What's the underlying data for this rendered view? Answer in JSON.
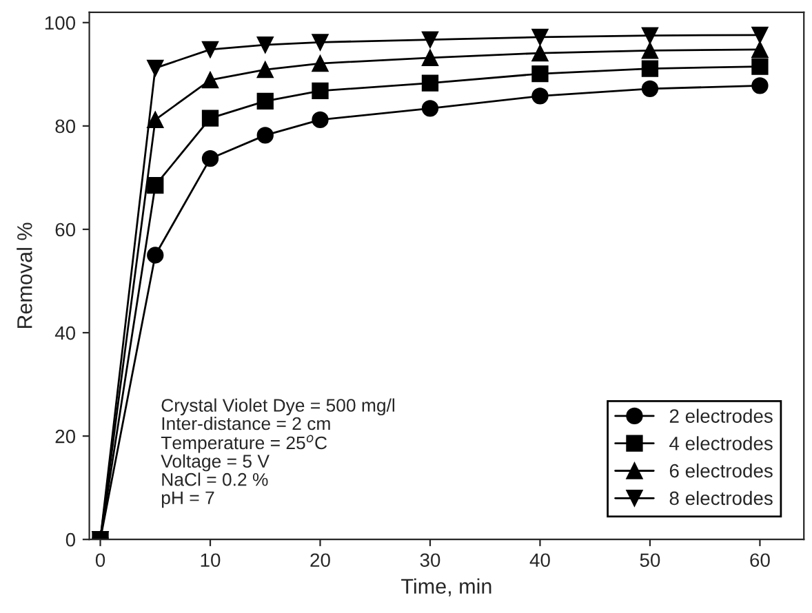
{
  "chart_data": {
    "type": "line",
    "xlabel": "Time, min",
    "ylabel": "Removal %",
    "x": [
      0,
      5,
      10,
      15,
      20,
      30,
      40,
      50,
      60
    ],
    "series": [
      {
        "name": "2 electrodes",
        "color": "#000000",
        "marker": "circle",
        "values": [
          0,
          55,
          73.7,
          78.2,
          81.2,
          83.4,
          85.8,
          87.2,
          87.8
        ]
      },
      {
        "name": "4 electrodes",
        "color": "#000000",
        "marker": "square",
        "values": [
          0,
          68.5,
          81.5,
          84.8,
          86.8,
          88.3,
          90.1,
          91.1,
          91.5
        ]
      },
      {
        "name": "6 electrodes",
        "color": "#000000",
        "marker": "triangle",
        "values": [
          0,
          81.2,
          88.9,
          90.9,
          92.1,
          93.2,
          94.1,
          94.6,
          94.8
        ]
      },
      {
        "name": "8 electrodes",
        "color": "#000000",
        "marker": "triangle_down",
        "values": [
          0,
          91.2,
          94.8,
          95.7,
          96.2,
          96.7,
          97.2,
          97.5,
          97.6
        ]
      }
    ],
    "xlim": [
      -1,
      64
    ],
    "xticks": [
      0,
      10,
      20,
      30,
      40,
      50,
      60
    ],
    "ylim": [
      0,
      102
    ],
    "yticks": [
      0,
      20,
      40,
      60,
      80,
      100
    ],
    "annotations": [
      "Crystal Violet Dye = 500 mg/l\nInter-distance = 2 cm\nTemperature = 25$^{o}$C\nVoltage = 5 V\nNaCl = 0.2 %\npH = 7"
    ],
    "legend": "bottom right",
    "grid": false,
    "line_style": "solid"
  }
}
